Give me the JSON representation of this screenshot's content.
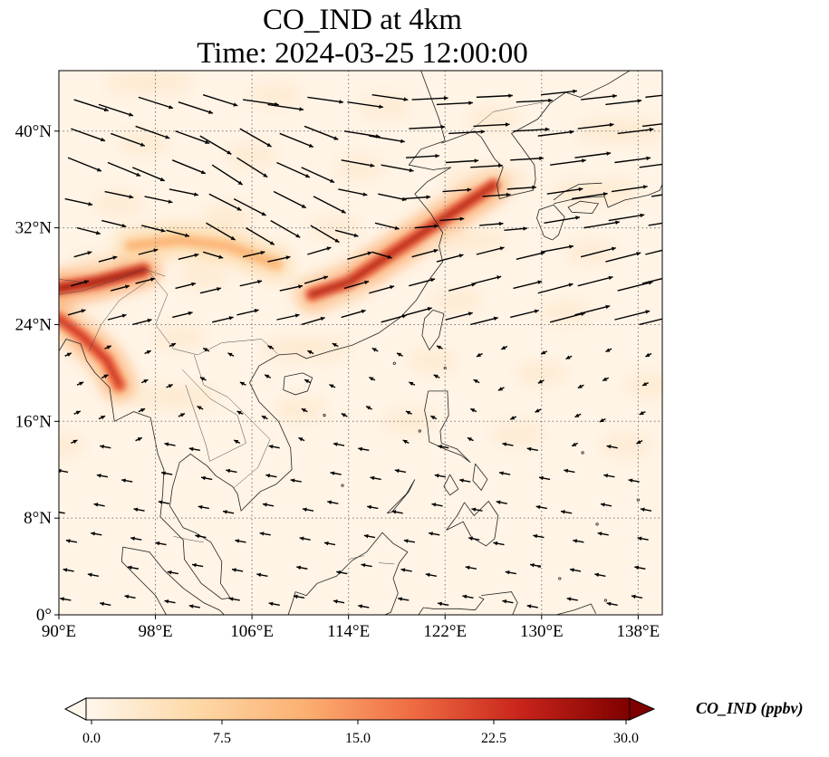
{
  "title": {
    "line1": "CO_IND at 4km",
    "line2": "Time: 2024-03-25 12:00:00"
  },
  "map": {
    "type": "filled-contour-with-wind-vectors",
    "variable": "CO_IND",
    "level": "4km",
    "time": "2024-03-25 12:00:00",
    "lon_range": [
      90,
      140
    ],
    "lat_range": [
      0,
      45
    ],
    "lon_ticks": [
      {
        "value": 90,
        "label": "90°E"
      },
      {
        "value": 98,
        "label": "98°E"
      },
      {
        "value": 106,
        "label": "106°E"
      },
      {
        "value": 114,
        "label": "114°E"
      },
      {
        "value": 122,
        "label": "122°E"
      },
      {
        "value": 130,
        "label": "130°E"
      },
      {
        "value": 138,
        "label": "138°E"
      }
    ],
    "lat_ticks": [
      {
        "value": 0,
        "label": "0°"
      },
      {
        "value": 8,
        "label": "8°N"
      },
      {
        "value": 16,
        "label": "16°N"
      },
      {
        "value": 24,
        "label": "24°N"
      },
      {
        "value": 32,
        "label": "32°N"
      },
      {
        "value": 40,
        "label": "40°N"
      }
    ],
    "gridlines": true,
    "colormap": "OrRd",
    "colors": {
      "background": "#fff4e6",
      "low": "#fde6c8",
      "mid": "#f5a36b",
      "high": "#c8301e",
      "max": "#7f0000",
      "coast": "#222222",
      "grid": "#7a7a7a",
      "arrow": "#000000"
    },
    "plumes": [
      {
        "name": "east-china-plume",
        "points": [
          [
            111,
            26.5
          ],
          [
            114,
            27.5
          ],
          [
            117,
            29.5
          ],
          [
            120,
            31.5
          ],
          [
            123,
            33.5
          ],
          [
            126,
            35.5
          ]
        ],
        "peak_value": 26
      },
      {
        "name": "myanmar-plume",
        "points": [
          [
            90,
            27
          ],
          [
            93,
            27.5
          ],
          [
            95,
            28
          ],
          [
            97,
            28.5
          ]
        ],
        "peak_value": 28
      },
      {
        "name": "bay-of-bengal-plume",
        "points": [
          [
            90,
            24.5
          ],
          [
            92,
            23
          ],
          [
            94,
            21
          ],
          [
            95,
            19
          ]
        ],
        "peak_value": 24
      },
      {
        "name": "central-china-band",
        "points": [
          [
            96,
            30.5
          ],
          [
            100,
            31
          ],
          [
            104,
            30.5
          ],
          [
            108,
            29
          ]
        ],
        "peak_value": 12
      }
    ]
  },
  "colorbar": {
    "title": "CO_IND (ppbv)",
    "vmin": 0.0,
    "vmax": 30.0,
    "ticks": [
      "0.0",
      "7.5",
      "15.0",
      "22.5",
      "30.0"
    ],
    "extend": "both"
  }
}
